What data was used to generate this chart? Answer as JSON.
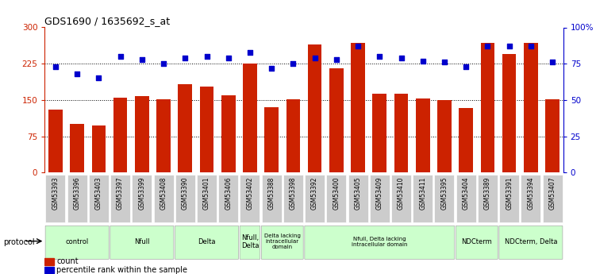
{
  "title": "GDS1690 / 1635692_s_at",
  "samples": [
    "GSM53393",
    "GSM53396",
    "GSM53403",
    "GSM53397",
    "GSM53399",
    "GSM53408",
    "GSM53390",
    "GSM53401",
    "GSM53406",
    "GSM53402",
    "GSM53388",
    "GSM53398",
    "GSM53392",
    "GSM53400",
    "GSM53405",
    "GSM53409",
    "GSM53410",
    "GSM53411",
    "GSM53395",
    "GSM53404",
    "GSM53389",
    "GSM53391",
    "GSM53394",
    "GSM53407"
  ],
  "counts": [
    130,
    100,
    98,
    155,
    158,
    152,
    182,
    178,
    160,
    225,
    135,
    152,
    265,
    215,
    268,
    163,
    163,
    153,
    150,
    133,
    268,
    245,
    268,
    152
  ],
  "percentile": [
    73,
    68,
    65,
    80,
    78,
    75,
    79,
    80,
    79,
    83,
    72,
    75,
    79,
    78,
    87,
    80,
    79,
    77,
    76,
    73,
    87,
    87,
    87,
    76
  ],
  "bar_color": "#cc2200",
  "dot_color": "#0000cc",
  "left_axis_color": "#cc2200",
  "right_axis_color": "#0000cc",
  "yticks_left": [
    0,
    75,
    150,
    225,
    300
  ],
  "yticks_right": [
    0,
    25,
    50,
    75,
    100
  ],
  "ylim_left": [
    0,
    300
  ],
  "ylim_right": [
    0,
    100
  ],
  "protocols": [
    {
      "label": "control",
      "start": 0,
      "end": 2,
      "color": "#ccffcc"
    },
    {
      "label": "Nfull",
      "start": 3,
      "end": 5,
      "color": "#ccffcc"
    },
    {
      "label": "Delta",
      "start": 6,
      "end": 8,
      "color": "#ccffcc"
    },
    {
      "label": "Nfull,\nDelta",
      "start": 9,
      "end": 9,
      "color": "#ccffcc"
    },
    {
      "label": "Delta lacking\nintracellular\ndomain",
      "start": 10,
      "end": 11,
      "color": "#ccffcc"
    },
    {
      "label": "Nfull, Delta lacking\nintracellular domain",
      "start": 12,
      "end": 18,
      "color": "#ccffcc"
    },
    {
      "label": "NDCterm",
      "start": 19,
      "end": 20,
      "color": "#ccffcc"
    },
    {
      "label": "NDCterm, Delta",
      "start": 21,
      "end": 23,
      "color": "#ccffcc"
    }
  ],
  "legend_count_label": "count",
  "legend_pct_label": "percentile rank within the sample",
  "protocol_label": "protocol"
}
